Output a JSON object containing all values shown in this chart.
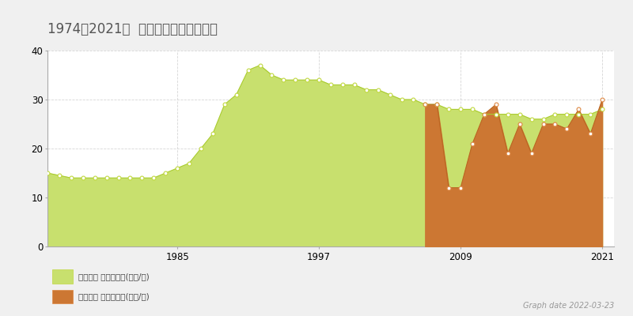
{
  "title": "1974～2021年  安芸郡坂町の地価渚移",
  "ylim": [
    0,
    40
  ],
  "yticks": [
    0,
    10,
    20,
    30,
    40
  ],
  "xticks": [
    1985,
    1997,
    2009,
    2021
  ],
  "bg_color": "#f0f0f0",
  "plot_bg_color": "#ffffff",
  "grid_color": "#cccccc",
  "legend_label_chika": "地価公示 平均坊単価(万円/坊)",
  "legend_label_torihiki": "取引価格 平均坊単価(万円/坊)",
  "graph_date": "Graph date 2022-03-23",
  "chika_fill_color": "#c8e06e",
  "chika_line_color": "#aacc30",
  "chika_marker_fill": "#ffffff",
  "chika_marker_edge": "#c0d840",
  "torihiki_fill_color": "#cc7733",
  "torihiki_line_color": "#bb6622",
  "torihiki_marker_fill": "#ffffff",
  "torihiki_marker_edge": "#dd8844",
  "chika_years": [
    1974,
    1975,
    1976,
    1977,
    1978,
    1979,
    1980,
    1981,
    1982,
    1983,
    1984,
    1985,
    1986,
    1987,
    1988,
    1989,
    1990,
    1991,
    1992,
    1993,
    1994,
    1995,
    1996,
    1997,
    1998,
    1999,
    2000,
    2001,
    2002,
    2003,
    2004,
    2005,
    2006,
    2007,
    2008,
    2009,
    2010,
    2011,
    2012,
    2013,
    2014,
    2015,
    2016,
    2017,
    2018,
    2019,
    2020,
    2021
  ],
  "chika_values": [
    15,
    14.5,
    14,
    14,
    14,
    14,
    14,
    14,
    14,
    14,
    15,
    16,
    17,
    20,
    23,
    29,
    31,
    36,
    37,
    35,
    34,
    34,
    34,
    34,
    33,
    33,
    33,
    32,
    32,
    31,
    30,
    30,
    29,
    29,
    28,
    28,
    28,
    27,
    27,
    27,
    27,
    26,
    26,
    27,
    27,
    27,
    27,
    28
  ],
  "torihiki_years": [
    2006,
    2007,
    2008,
    2009,
    2010,
    2011,
    2012,
    2013,
    2014,
    2015,
    2016,
    2017,
    2018,
    2019,
    2020,
    2021
  ],
  "torihiki_values": [
    29,
    29,
    12,
    12,
    21,
    27,
    29,
    19,
    25,
    19,
    25,
    25,
    24,
    28,
    23,
    30
  ],
  "xlim_left": 1974,
  "xlim_right": 2022
}
